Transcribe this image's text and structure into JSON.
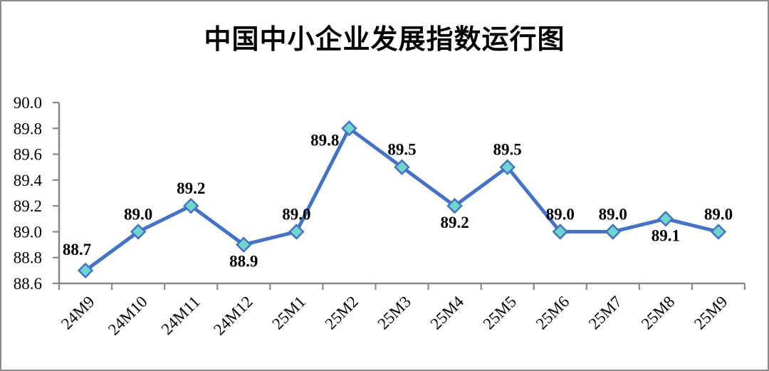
{
  "frame": {
    "background_color": "#ffffff",
    "border_color": "#8a8a8a"
  },
  "chart_data": {
    "type": "line",
    "title": "中国中小企业发展指数运行图",
    "categories": [
      "24M9",
      "24M10",
      "24M11",
      "24M12",
      "25M1",
      "25M2",
      "25M3",
      "25M4",
      "25M5",
      "25M6",
      "25M7",
      "25M8",
      "25M9"
    ],
    "values": [
      88.7,
      89.0,
      89.2,
      88.9,
      89.0,
      89.8,
      89.5,
      89.2,
      89.5,
      89.0,
      89.0,
      89.1,
      89.0
    ],
    "data_labels": [
      "88.7",
      "89.0",
      "89.2",
      "88.9",
      "89.0",
      "89.8",
      "89.5",
      "89.2",
      "89.5",
      "89.0",
      "89.0",
      "89.1",
      "89.0"
    ],
    "label_positions": [
      "above-left",
      "above",
      "above",
      "below",
      "above",
      "left",
      "above",
      "below",
      "above",
      "above",
      "above",
      "below",
      "above"
    ],
    "xlabel": "",
    "ylabel": "",
    "ylim": [
      88.6,
      90.0
    ],
    "y_tick_step": 0.2,
    "y_tick_labels": [
      "90.0",
      "89.8",
      "89.6",
      "89.4",
      "89.2",
      "89.0",
      "88.8",
      "88.6"
    ],
    "grid": false,
    "legend_position": "none",
    "line_color": "#4472C4",
    "marker": {
      "shape": "diamond",
      "fill": "#6FD5CD",
      "stroke": "#4472C4"
    },
    "axis_color": "#898989",
    "text_color": "#000000"
  }
}
